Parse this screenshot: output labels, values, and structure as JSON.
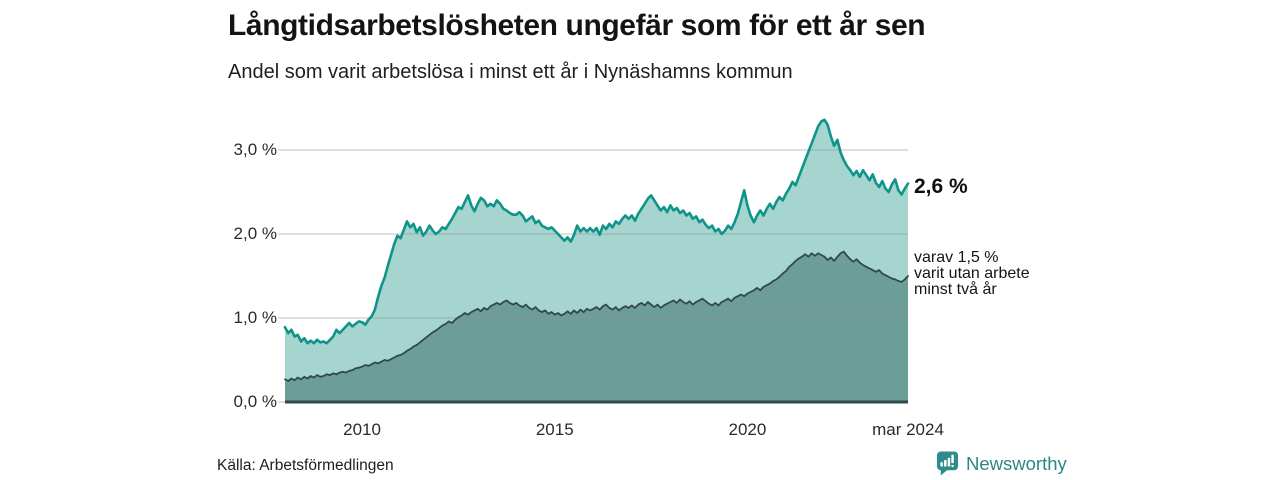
{
  "header": {
    "title": "Långtidsarbetslösheten ungefär som för ett år sen",
    "subtitle": "Andel som varit arbetslösa i minst ett år i Nynäshamns kommun"
  },
  "annotations": {
    "latest_total": "2,6 %",
    "secondary_lines": [
      "varav 1,5 %",
      "varit utan arbete",
      "minst två år"
    ]
  },
  "source": {
    "label": "Källa: Arbetsförmedlingen"
  },
  "branding": {
    "name": "Newsworthy"
  },
  "colors": {
    "series1_fill": "#A5D5CE",
    "series1_line": "#0F948A",
    "series2_fill": "#6D9D97",
    "series2_line": "#32494A",
    "grid": "#8C9696",
    "baseline": "#30494A",
    "brand": "#2E8486"
  },
  "chart_data": {
    "type": "area",
    "title": "Långtidsarbetslösheten ungefär som för ett år sen",
    "subtitle": "Andel som varit arbetslösa i minst ett år i Nynäshamns kommun",
    "unit": "%",
    "frequency": "monthly",
    "x_start": "2008-01",
    "x_end": "2024-03",
    "ylim": [
      0,
      3.5
    ],
    "grid": true,
    "legend": "end-of-line annotations",
    "y_ticks": [
      {
        "value": 0,
        "label": "0,0 %"
      },
      {
        "value": 1,
        "label": "1,0 %"
      },
      {
        "value": 2,
        "label": "2,0 %"
      },
      {
        "value": 3,
        "label": "3,0 %"
      }
    ],
    "x_ticks": [
      {
        "month_index": 24,
        "label": "2010"
      },
      {
        "month_index": 84,
        "label": "2015"
      },
      {
        "month_index": 144,
        "label": "2020"
      },
      {
        "month_index": 194,
        "label": "mar 2024"
      }
    ],
    "series": [
      {
        "name": "Arbetslösa minst ett år",
        "end_label": "2,6 %",
        "latest_value": 2.6,
        "values": [
          0.89,
          0.82,
          0.86,
          0.78,
          0.8,
          0.72,
          0.76,
          0.7,
          0.73,
          0.7,
          0.74,
          0.71,
          0.72,
          0.7,
          0.74,
          0.78,
          0.86,
          0.82,
          0.86,
          0.9,
          0.94,
          0.9,
          0.93,
          0.96,
          0.95,
          0.92,
          0.98,
          1.02,
          1.1,
          1.25,
          1.38,
          1.48,
          1.62,
          1.75,
          1.88,
          1.98,
          1.95,
          2.05,
          2.15,
          2.08,
          2.12,
          2.02,
          2.08,
          1.98,
          2.03,
          2.1,
          2.04,
          2.0,
          2.03,
          2.08,
          2.06,
          2.12,
          2.18,
          2.25,
          2.32,
          2.3,
          2.38,
          2.46,
          2.34,
          2.27,
          2.36,
          2.43,
          2.4,
          2.33,
          2.36,
          2.33,
          2.4,
          2.36,
          2.3,
          2.28,
          2.25,
          2.23,
          2.23,
          2.26,
          2.22,
          2.15,
          2.18,
          2.21,
          2.13,
          2.16,
          2.1,
          2.08,
          2.06,
          2.08,
          2.04,
          2.0,
          1.96,
          1.92,
          1.96,
          1.91,
          1.99,
          2.1,
          2.03,
          2.07,
          2.03,
          2.07,
          2.03,
          2.07,
          1.99,
          2.1,
          2.06,
          2.12,
          2.08,
          2.15,
          2.12,
          2.18,
          2.22,
          2.18,
          2.22,
          2.16,
          2.24,
          2.3,
          2.36,
          2.42,
          2.46,
          2.4,
          2.34,
          2.28,
          2.32,
          2.26,
          2.34,
          2.28,
          2.31,
          2.25,
          2.28,
          2.22,
          2.25,
          2.18,
          2.21,
          2.14,
          2.17,
          2.11,
          2.07,
          2.1,
          2.03,
          2.06,
          2.0,
          2.04,
          2.1,
          2.06,
          2.14,
          2.24,
          2.38,
          2.52,
          2.34,
          2.22,
          2.14,
          2.22,
          2.28,
          2.22,
          2.3,
          2.36,
          2.3,
          2.38,
          2.44,
          2.4,
          2.48,
          2.54,
          2.62,
          2.58,
          2.68,
          2.78,
          2.88,
          2.98,
          3.08,
          3.18,
          3.28,
          3.34,
          3.36,
          3.3,
          3.16,
          3.05,
          3.12,
          2.97,
          2.88,
          2.81,
          2.76,
          2.7,
          2.75,
          2.68,
          2.76,
          2.7,
          2.64,
          2.71,
          2.61,
          2.56,
          2.63,
          2.54,
          2.5,
          2.59,
          2.65,
          2.52,
          2.47,
          2.54,
          2.6
        ]
      },
      {
        "name": "varav utan arbete minst två år",
        "end_label": "1,5 %",
        "latest_value": 1.5,
        "values": [
          0.27,
          0.25,
          0.28,
          0.26,
          0.29,
          0.27,
          0.3,
          0.28,
          0.31,
          0.29,
          0.32,
          0.3,
          0.31,
          0.33,
          0.32,
          0.34,
          0.33,
          0.35,
          0.36,
          0.35,
          0.37,
          0.38,
          0.4,
          0.41,
          0.42,
          0.44,
          0.43,
          0.45,
          0.47,
          0.46,
          0.48,
          0.5,
          0.49,
          0.51,
          0.53,
          0.55,
          0.56,
          0.58,
          0.61,
          0.63,
          0.66,
          0.68,
          0.71,
          0.74,
          0.77,
          0.8,
          0.83,
          0.85,
          0.88,
          0.91,
          0.93,
          0.96,
          0.94,
          0.98,
          1.01,
          1.03,
          1.06,
          1.04,
          1.07,
          1.09,
          1.11,
          1.08,
          1.12,
          1.1,
          1.14,
          1.16,
          1.18,
          1.16,
          1.19,
          1.21,
          1.18,
          1.16,
          1.18,
          1.15,
          1.13,
          1.16,
          1.12,
          1.1,
          1.13,
          1.09,
          1.07,
          1.09,
          1.05,
          1.07,
          1.04,
          1.06,
          1.03,
          1.05,
          1.08,
          1.05,
          1.09,
          1.06,
          1.1,
          1.07,
          1.11,
          1.09,
          1.11,
          1.13,
          1.1,
          1.14,
          1.16,
          1.12,
          1.1,
          1.13,
          1.09,
          1.12,
          1.14,
          1.12,
          1.15,
          1.12,
          1.16,
          1.18,
          1.15,
          1.19,
          1.16,
          1.13,
          1.16,
          1.12,
          1.15,
          1.17,
          1.19,
          1.21,
          1.18,
          1.22,
          1.19,
          1.17,
          1.2,
          1.16,
          1.19,
          1.21,
          1.23,
          1.2,
          1.17,
          1.15,
          1.18,
          1.15,
          1.19,
          1.21,
          1.23,
          1.2,
          1.24,
          1.26,
          1.28,
          1.26,
          1.29,
          1.31,
          1.33,
          1.36,
          1.33,
          1.37,
          1.39,
          1.41,
          1.44,
          1.46,
          1.49,
          1.53,
          1.56,
          1.61,
          1.64,
          1.68,
          1.71,
          1.73,
          1.76,
          1.73,
          1.77,
          1.74,
          1.77,
          1.75,
          1.73,
          1.69,
          1.72,
          1.68,
          1.73,
          1.77,
          1.79,
          1.74,
          1.7,
          1.67,
          1.7,
          1.66,
          1.63,
          1.61,
          1.59,
          1.57,
          1.55,
          1.57,
          1.53,
          1.51,
          1.49,
          1.47,
          1.46,
          1.44,
          1.43,
          1.46,
          1.5
        ]
      }
    ]
  }
}
